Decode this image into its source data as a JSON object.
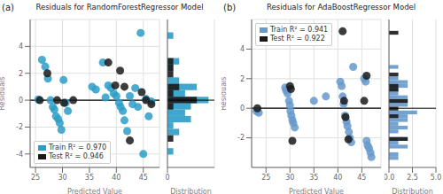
{
  "chart_data": [
    {
      "type": "scatter",
      "title": "Residuals for RandomForestRegressor Model",
      "annotation": "(a)",
      "x_label": "Predicted Value",
      "y_label": "Residuals",
      "xlim": [
        24,
        48
      ],
      "ylim": [
        -5,
        6
      ],
      "xticks": [
        25,
        30,
        35,
        40,
        45
      ],
      "yticks": [
        -4,
        -2,
        0,
        2,
        4
      ],
      "grid": true,
      "legend": "lower left",
      "hline": 0,
      "series": [
        {
          "name": "Train R² = 0.970",
          "color": "#2b9cc8",
          "x": [
            25.5,
            26.2,
            26.8,
            27.3,
            27.8,
            28.2,
            28.5,
            28.8,
            29.2,
            29.5,
            29.8,
            30.2,
            30.6,
            31.0,
            35.5,
            36.2,
            37.5,
            38.0,
            38.5,
            39.0,
            39.5,
            40.0,
            40.5,
            40.8,
            41.2,
            41.5,
            42.0,
            42.5,
            43.0,
            43.5,
            44.0,
            44.5,
            45.0,
            45.5,
            46.0,
            46.5
          ],
          "values": [
            0.05,
            3.0,
            2.5,
            1.6,
            0.0,
            -0.5,
            -0.7,
            -1.2,
            -1.4,
            -1.7,
            -2.2,
            1.5,
            -0.2,
            -0.8,
            1.0,
            0.8,
            2.8,
            0.2,
            1.1,
            0.9,
            0.5,
            0.3,
            -0.2,
            -0.5,
            -0.8,
            -1.5,
            -2.3,
            0.3,
            -0.3,
            0.9,
            -0.5,
            5.0,
            -4.0,
            0.1,
            -1.2,
            -0.1
          ]
        },
        {
          "name": "Test R² = 0.946",
          "color": "#1a1a1a",
          "x": [
            25.8,
            27.2,
            29.0,
            30.3,
            32.0,
            38.5,
            39.8,
            40.7,
            41.5,
            42.5,
            44.7,
            45.5,
            46.5
          ],
          "values": [
            0.0,
            2.0,
            0.0,
            -0.2,
            0.0,
            2.8,
            1.1,
            2.2,
            1.0,
            -3.0,
            0.6,
            0.0,
            -0.3
          ]
        }
      ]
    },
    {
      "type": "histogram",
      "orientation": "horizontal",
      "x_label": "Distribution",
      "bins": [
        -5,
        -4.5217,
        -4.0435,
        -3.5652,
        -3.087,
        -2.6087,
        -2.1304,
        -1.6522,
        -1.1739,
        -0.6957,
        -0.2174,
        0.2609,
        0.7391,
        1.2174,
        1.6957,
        2.1739,
        2.6522,
        3.1304,
        3.6087,
        4.087,
        4.5652,
        5.0435,
        5.5217,
        6
      ],
      "xlim": [
        0,
        8
      ],
      "xticks": [
        0
      ],
      "ylim": [
        -5,
        6
      ],
      "tick_labels": "x",
      "grid": true,
      "hline": 0,
      "series": [
        {
          "color": "#2b9cc8",
          "values": [
            0,
            0,
            1,
            0,
            0,
            2,
            1,
            4,
            3,
            4,
            7,
            3,
            5,
            2,
            0,
            1,
            2,
            0,
            0,
            0,
            1,
            0,
            0
          ]
        },
        {
          "color": "#1a1a1a",
          "values": [
            0,
            0,
            0,
            0,
            1,
            0,
            0,
            0,
            0,
            1,
            5,
            1,
            2,
            0,
            1,
            1,
            1,
            0,
            0,
            0,
            0,
            0,
            0
          ]
        }
      ]
    },
    {
      "type": "scatter",
      "title": "Residuals for AdaBoostRegressor Model",
      "annotation": "(b)",
      "x_label": "Predicted Value",
      "y_label": "Residuals",
      "xlim": [
        22,
        49
      ],
      "ylim": [
        -4,
        6
      ],
      "xticks": [
        25,
        30,
        35,
        40,
        45
      ],
      "yticks": [
        -2,
        0,
        2,
        4
      ],
      "grid": true,
      "legend": "upper left",
      "hline": 0,
      "series": [
        {
          "name": "Train R² = 0.941",
          "color": "#6699cc",
          "x": [
            23.0,
            23.5,
            29.0,
            29.2,
            29.5,
            29.8,
            30.0,
            30.1,
            30.3,
            30.5,
            30.7,
            31.0,
            35.0,
            37.5,
            40.5,
            40.8,
            41.0,
            41.2,
            41.5,
            41.8,
            42.0,
            42.3,
            42.5,
            42.8,
            43.2,
            45.5,
            45.8,
            46.0,
            46.2,
            46.5,
            46.8,
            47.0
          ],
          "values": [
            -0.2,
            -0.3,
            1.4,
            1.2,
            1.0,
            0.5,
            0.2,
            -0.2,
            -0.5,
            -0.8,
            -1.0,
            -1.3,
            0.5,
            0.8,
            1.8,
            1.5,
            0.8,
            0.3,
            -0.5,
            -0.9,
            -1.2,
            -1.6,
            -2.0,
            -2.3,
            2.8,
            2.0,
            1.8,
            -2.2,
            -2.5,
            -2.7,
            -3.0,
            -3.3
          ]
        },
        {
          "name": "Test R² = 0.922",
          "color": "#1a1a1a",
          "x": [
            23.2,
            30.0,
            30.2,
            30.5,
            41.0,
            41.3,
            41.6,
            42.2,
            45.5,
            46.0
          ],
          "values": [
            0.0,
            1.5,
            1.3,
            -2.2,
            5.2,
            0.5,
            -0.6,
            -2.1,
            0.5,
            2.2
          ]
        }
      ]
    },
    {
      "type": "histogram",
      "orientation": "horizontal",
      "x_label": "Distribution",
      "bins": [
        -4,
        -3.7436,
        -3.4872,
        -3.2308,
        -2.9744,
        -2.7179,
        -2.4615,
        -2.2051,
        -1.9487,
        -1.6923,
        -1.4359,
        -1.1795,
        -0.9231,
        -0.6667,
        -0.4103,
        -0.1538,
        0.1026,
        0.359,
        0.6154,
        0.8718,
        1.1282,
        1.3846,
        1.641,
        1.8974,
        2.1538,
        2.4103,
        2.6667,
        2.9231,
        3.1795,
        3.4359,
        3.6923,
        3.9487,
        4.2051,
        4.4615,
        4.7179,
        4.9744,
        5.2308,
        5.4872,
        5.7436,
        6
      ],
      "xlim": [
        0,
        5
      ],
      "xticks": [
        {
          "value": 0,
          "label": "0.0"
        },
        2.5,
        {
          "value": 5,
          "label": "5.0"
        }
      ],
      "ylim": [
        -4,
        6
      ],
      "tick_labels": "x",
      "grid": true,
      "hline": 0,
      "series": [
        {
          "color": "#6699cc",
          "values": [
            0,
            0,
            1,
            1,
            0,
            2,
            1,
            2,
            0,
            1,
            2,
            1,
            2,
            2,
            3,
            0,
            2,
            2,
            2,
            1,
            1,
            2,
            2,
            1,
            0,
            0,
            1,
            0,
            0,
            0,
            0,
            0,
            0,
            0,
            0,
            0,
            0,
            0,
            0
          ]
        },
        {
          "color": "#1a1a1a",
          "values": [
            0,
            0,
            0,
            0,
            0,
            0,
            0,
            2,
            0,
            0,
            0,
            0,
            0,
            1,
            0,
            1,
            0,
            2,
            0,
            0,
            1,
            1,
            0,
            0,
            1,
            0,
            0,
            0,
            0,
            0,
            0,
            0,
            0,
            0,
            0,
            1,
            0,
            0,
            0
          ]
        }
      ]
    }
  ]
}
